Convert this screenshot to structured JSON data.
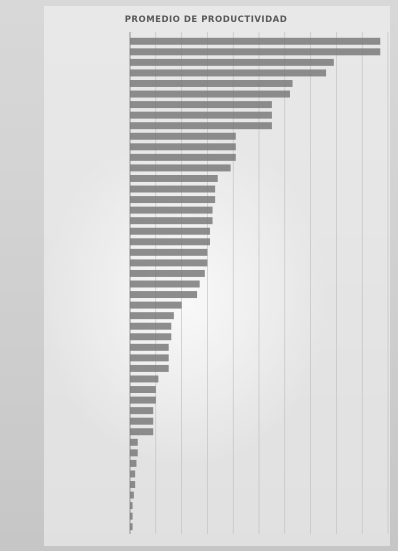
{
  "chart_data": {
    "type": "bar",
    "orientation": "horizontal",
    "title": "PROMEDIO DE PRODUCTIVIDAD",
    "categories": [
      "",
      "",
      "",
      "",
      "",
      "",
      "",
      "",
      "",
      "",
      "",
      "",
      "",
      "",
      "",
      "",
      "",
      "",
      "",
      "",
      "",
      "",
      "",
      "",
      "",
      "",
      "",
      "",
      "",
      "",
      "",
      "",
      "",
      "",
      "",
      "",
      "",
      "",
      "",
      "",
      "",
      "",
      "",
      "",
      "",
      "",
      ""
    ],
    "values": [
      9.7,
      9.7,
      7.9,
      7.6,
      6.3,
      6.2,
      5.5,
      5.5,
      5.5,
      4.1,
      4.1,
      4.1,
      3.9,
      3.4,
      3.3,
      3.3,
      3.2,
      3.2,
      3.1,
      3.1,
      3.0,
      3.0,
      2.9,
      2.7,
      2.6,
      2.0,
      1.7,
      1.6,
      1.6,
      1.5,
      1.5,
      1.5,
      1.1,
      1.0,
      1.0,
      0.9,
      0.9,
      0.9,
      0.3,
      0.3,
      0.25,
      0.2,
      0.2,
      0.15,
      0.1,
      0.1,
      0.1
    ],
    "xlim": [
      0,
      10
    ],
    "grid": true,
    "colors": {
      "bar": "#7a7a7a",
      "grid": "#bdbdbd"
    }
  }
}
